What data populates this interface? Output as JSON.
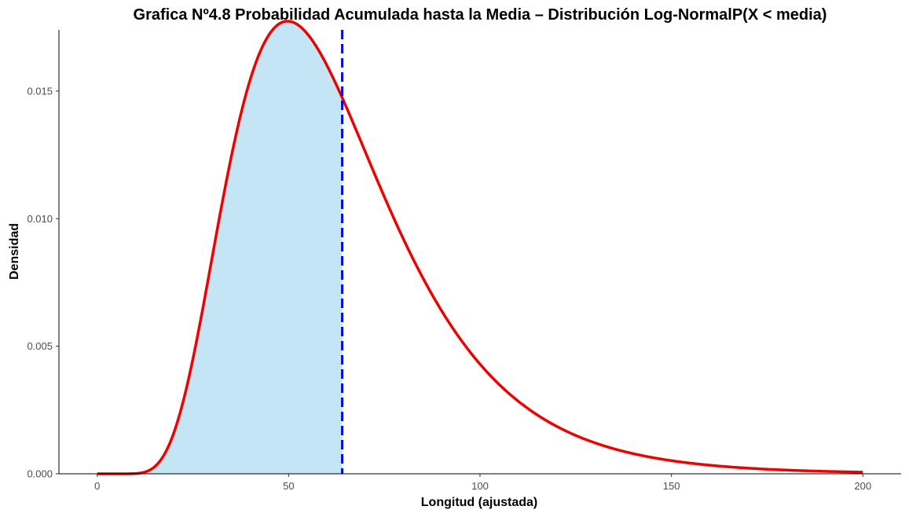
{
  "chart_data": {
    "type": "area",
    "title": "Grafica Nº4.8 Probabilidad Acumulada hasta la Media – Distribución Log-NormalP(X < media)",
    "xlabel": "Longitud (ajustada)",
    "ylabel": "Densidad",
    "xlim": [
      -10,
      210
    ],
    "ylim": [
      0,
      0.0174
    ],
    "x_ticks": [
      0,
      50,
      100,
      150,
      200
    ],
    "x_tick_labels": [
      "0",
      "50",
      "100",
      "150",
      "200"
    ],
    "y_ticks": [
      0,
      0.005,
      0.01,
      0.015
    ],
    "y_tick_labels": [
      "0.000",
      "0.005",
      "0.010",
      "0.015"
    ],
    "grid": false,
    "distribution": {
      "family": "log-normal",
      "meanlog": 4.0785,
      "sdlog": 0.415
    },
    "mean_line_x": 64,
    "x": [
      0,
      10,
      14,
      17,
      20,
      25,
      30,
      35,
      40,
      45,
      50,
      55,
      60,
      64,
      70,
      80,
      90,
      100,
      110,
      120,
      130,
      140,
      150,
      160,
      170,
      180,
      190,
      200
    ],
    "series": [
      {
        "name": "",
        "values": [
          0,
          2e-05,
          0.00035,
          0.0011,
          0.0023,
          0.0051,
          0.0083,
          0.0116,
          0.0145,
          0.0165,
          0.0174,
          0.0172,
          0.0162,
          0.0148,
          0.0132,
          0.01,
          0.0072,
          0.0049,
          0.0033,
          0.0022,
          0.0015,
          0.001,
          0.0007,
          0.00046,
          0.00032,
          0.00022,
          0.00015,
          0.0001
        ]
      }
    ],
    "shaded_region": {
      "from": 0,
      "to": 64
    },
    "colors": {
      "curve": "#ee0000",
      "fill": "#c3e5f4",
      "mean_line": "#0000ee",
      "axis": "#000000"
    }
  }
}
